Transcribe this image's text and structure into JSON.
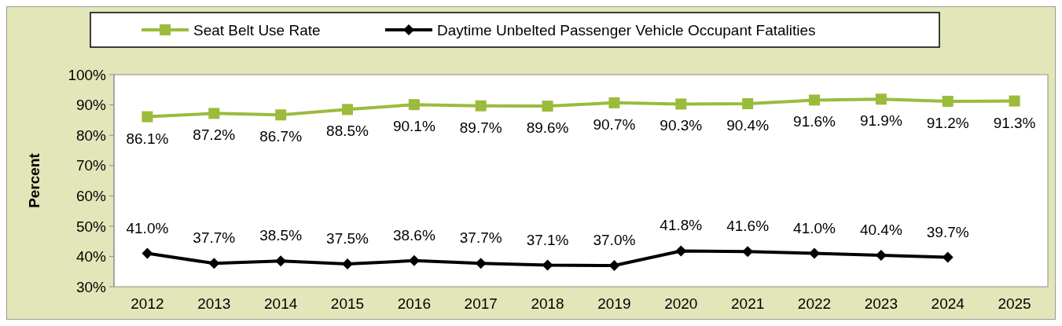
{
  "chart_data": {
    "type": "line",
    "ylabel": "Percent",
    "categories": [
      "2012",
      "2013",
      "2014",
      "2015",
      "2016",
      "2017",
      "2018",
      "2019",
      "2020",
      "2021",
      "2022",
      "2023",
      "2024",
      "2025"
    ],
    "ylim": [
      30,
      100
    ],
    "yticks": [
      {
        "value": 30,
        "label": "30%"
      },
      {
        "value": 40,
        "label": "40%"
      },
      {
        "value": 50,
        "label": "50%"
      },
      {
        "value": 60,
        "label": "60%"
      },
      {
        "value": 70,
        "label": "70%"
      },
      {
        "value": 80,
        "label": "80%"
      },
      {
        "value": 90,
        "label": "90%"
      },
      {
        "value": 100,
        "label": "100%"
      }
    ],
    "legend": "top",
    "grid": false,
    "series": [
      {
        "name": "Seat Belt Use Rate",
        "color": "#9bbb3b",
        "marker": "square",
        "values": [
          86.1,
          87.2,
          86.7,
          88.5,
          90.1,
          89.7,
          89.6,
          90.7,
          90.3,
          90.4,
          91.6,
          91.9,
          91.2,
          91.3
        ],
        "value_labels": [
          "86.1%",
          "87.2%",
          "86.7%",
          "88.5%",
          "90.1%",
          "89.7%",
          "89.6%",
          "90.7%",
          "90.3%",
          "90.4%",
          "91.6%",
          "91.9%",
          "91.2%",
          "91.3%"
        ]
      },
      {
        "name": "Daytime Unbelted Passenger Vehicle Occupant Fatalities",
        "color": "#000000",
        "marker": "diamond",
        "values": [
          41.0,
          37.7,
          38.5,
          37.5,
          38.6,
          37.7,
          37.1,
          37.0,
          41.8,
          41.6,
          41.0,
          40.4,
          39.7,
          null
        ],
        "value_labels": [
          "41.0%",
          "37.7%",
          "38.5%",
          "37.5%",
          "38.6%",
          "37.7%",
          "37.1%",
          "37.0%",
          "41.8%",
          "41.6%",
          "41.0%",
          "40.4%",
          "39.7%",
          null
        ]
      }
    ]
  }
}
